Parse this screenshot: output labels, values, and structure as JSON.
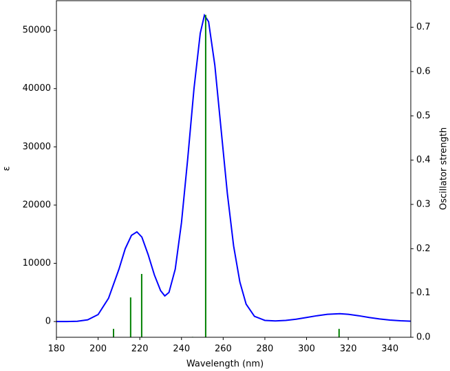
{
  "chart_data": {
    "type": "line",
    "xlabel": "Wavelength (nm)",
    "ylabel": "ε",
    "y2label": "Oscillator strength",
    "xlim": [
      180,
      350
    ],
    "xticks": [
      180,
      200,
      220,
      240,
      260,
      280,
      300,
      320,
      340
    ],
    "ylim": [
      -2700,
      55100
    ],
    "yticks": [
      0,
      10000,
      20000,
      30000,
      40000,
      50000
    ],
    "y2lim": [
      0,
      0.76
    ],
    "y2ticks": [
      {
        "value": 0,
        "label": "0.0"
      },
      0.1,
      0.2,
      0.3,
      0.4,
      0.5,
      0.6,
      0.7
    ],
    "series": [
      {
        "color": "#0000ff",
        "style": "line",
        "x": [
          180,
          185,
          190,
          195,
          200,
          205,
          210,
          213,
          216,
          218.6,
          221,
          224,
          227,
          230,
          232,
          234,
          237,
          240,
          243,
          246,
          249,
          251,
          253,
          256,
          259,
          262,
          265,
          268,
          271,
          275,
          280,
          285,
          290,
          295,
          300,
          305,
          310,
          316,
          320,
          325,
          330,
          335,
          340,
          345,
          350
        ],
        "values": [
          0,
          10,
          50,
          300,
          1200,
          4000,
          9000,
          12500,
          14800,
          15400,
          14500,
          11500,
          8000,
          5300,
          4400,
          5000,
          9000,
          17000,
          28000,
          40000,
          49500,
          52600,
          51500,
          44000,
          33000,
          22000,
          13000,
          6800,
          3000,
          900,
          200,
          100,
          200,
          400,
          700,
          1000,
          1250,
          1350,
          1250,
          1000,
          700,
          450,
          250,
          130,
          60
        ]
      },
      {
        "color": "#008000",
        "style": "stem",
        "axis": "y2",
        "x": [
          207.4,
          215.6,
          220.9,
          245.3,
          251.6,
          315.6
        ],
        "values": [
          0.019,
          0.09,
          0.143,
          0.001,
          0.728,
          0.019
        ]
      }
    ]
  }
}
